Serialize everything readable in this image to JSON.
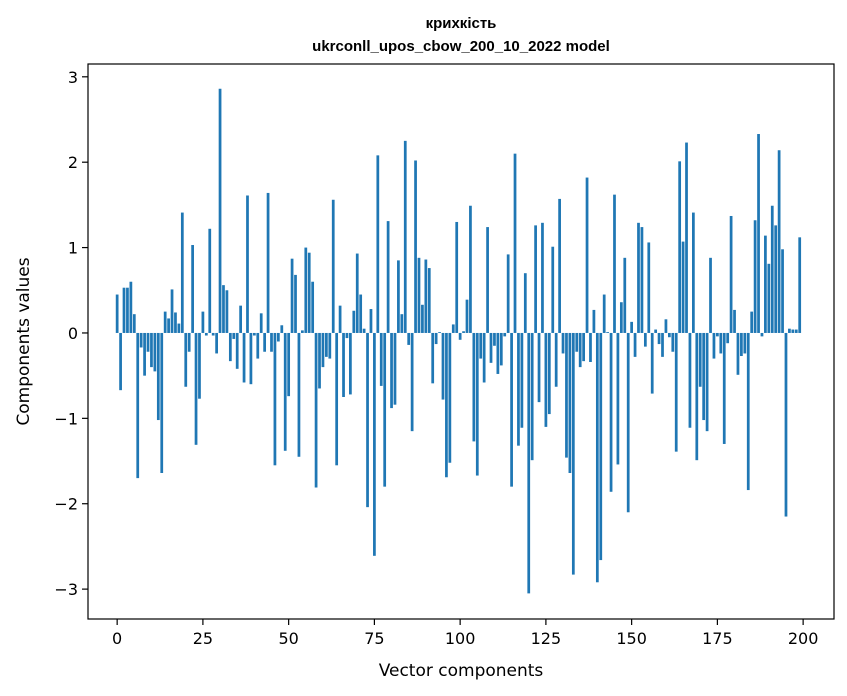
{
  "chart_data": {
    "type": "bar",
    "title_lines": [
      "крихкість",
      "ukrconll_upos_cbow_200_10_2022 model"
    ],
    "xlabel": "Vector components",
    "ylabel": "Components values",
    "xlim": [
      -8.5,
      209
    ],
    "ylim": [
      -3.35,
      3.15
    ],
    "xticks": [
      0,
      25,
      50,
      75,
      100,
      125,
      150,
      175,
      200
    ],
    "xtick_labels": [
      "0",
      "25",
      "50",
      "75",
      "100",
      "125",
      "150",
      "175",
      "200"
    ],
    "yticks": [
      -3,
      -2,
      -1,
      0,
      1,
      2,
      3
    ],
    "ytick_labels": [
      "−3",
      "−2",
      "−1",
      "0",
      "1",
      "2",
      "3"
    ],
    "bar_color": "#1f77b4",
    "values": [
      0.45,
      -0.67,
      0.53,
      0.53,
      0.6,
      0.22,
      -1.7,
      -0.17,
      -0.5,
      -0.22,
      -0.4,
      -0.45,
      -1.02,
      -1.64,
      0.25,
      0.17,
      0.51,
      0.24,
      0.11,
      1.41,
      -0.63,
      -0.22,
      1.03,
      -1.31,
      -0.77,
      0.25,
      -0.03,
      1.22,
      -0.03,
      -0.24,
      2.86,
      0.56,
      0.5,
      -0.33,
      -0.07,
      -0.42,
      0.32,
      -0.58,
      1.61,
      -0.6,
      -0.03,
      -0.3,
      0.23,
      -0.22,
      1.64,
      -0.22,
      -1.55,
      -0.1,
      0.09,
      -1.38,
      -0.74,
      0.87,
      0.68,
      -1.45,
      0.03,
      1.0,
      0.94,
      0.6,
      -1.81,
      -0.65,
      -0.4,
      -0.28,
      -0.3,
      1.56,
      -1.55,
      0.32,
      -0.75,
      -0.06,
      -0.72,
      0.26,
      0.93,
      0.45,
      0.05,
      -2.04,
      0.28,
      -2.61,
      2.08,
      -0.62,
      -1.8,
      1.31,
      -0.88,
      -0.84,
      0.85,
      0.22,
      2.25,
      -0.14,
      -1.15,
      2.02,
      0.88,
      0.33,
      0.86,
      0.76,
      -0.59,
      -0.13,
      0.01,
      -0.78,
      -1.69,
      -1.52,
      0.1,
      1.3,
      -0.08,
      0.02,
      0.39,
      1.49,
      -1.27,
      -1.67,
      -0.3,
      -0.58,
      1.24,
      -0.35,
      -0.15,
      -0.48,
      -0.38,
      -0.04,
      0.92,
      -1.8,
      2.1,
      -1.32,
      -1.11,
      0.7,
      -3.05,
      -1.49,
      1.26,
      -0.81,
      1.29,
      -1.1,
      -0.95,
      1.01,
      -0.63,
      1.57,
      -0.24,
      -1.46,
      -1.64,
      -2.83,
      -0.22,
      -0.4,
      -0.33,
      1.82,
      -0.34,
      0.27,
      -2.92,
      -2.66,
      0.45,
      0.01,
      -1.86,
      1.62,
      -1.54,
      0.36,
      0.88,
      -2.1,
      0.13,
      -0.28,
      1.29,
      1.24,
      -0.16,
      1.06,
      -0.71,
      0.04,
      -0.13,
      -0.28,
      0.16,
      -0.05,
      -0.22,
      -1.39,
      2.01,
      1.07,
      2.23,
      -1.11,
      1.41,
      -1.49,
      -0.63,
      -1.02,
      -1.15,
      0.88,
      -0.3,
      -0.04,
      -0.24,
      -1.3,
      -0.12,
      1.37,
      0.27,
      -0.49,
      -0.27,
      -0.24,
      -1.84,
      0.25,
      1.32,
      2.33,
      -0.04,
      1.14,
      0.81,
      1.49,
      1.26,
      2.14,
      0.98,
      -2.15,
      0.05,
      0.04,
      0.04,
      1.12
    ]
  }
}
